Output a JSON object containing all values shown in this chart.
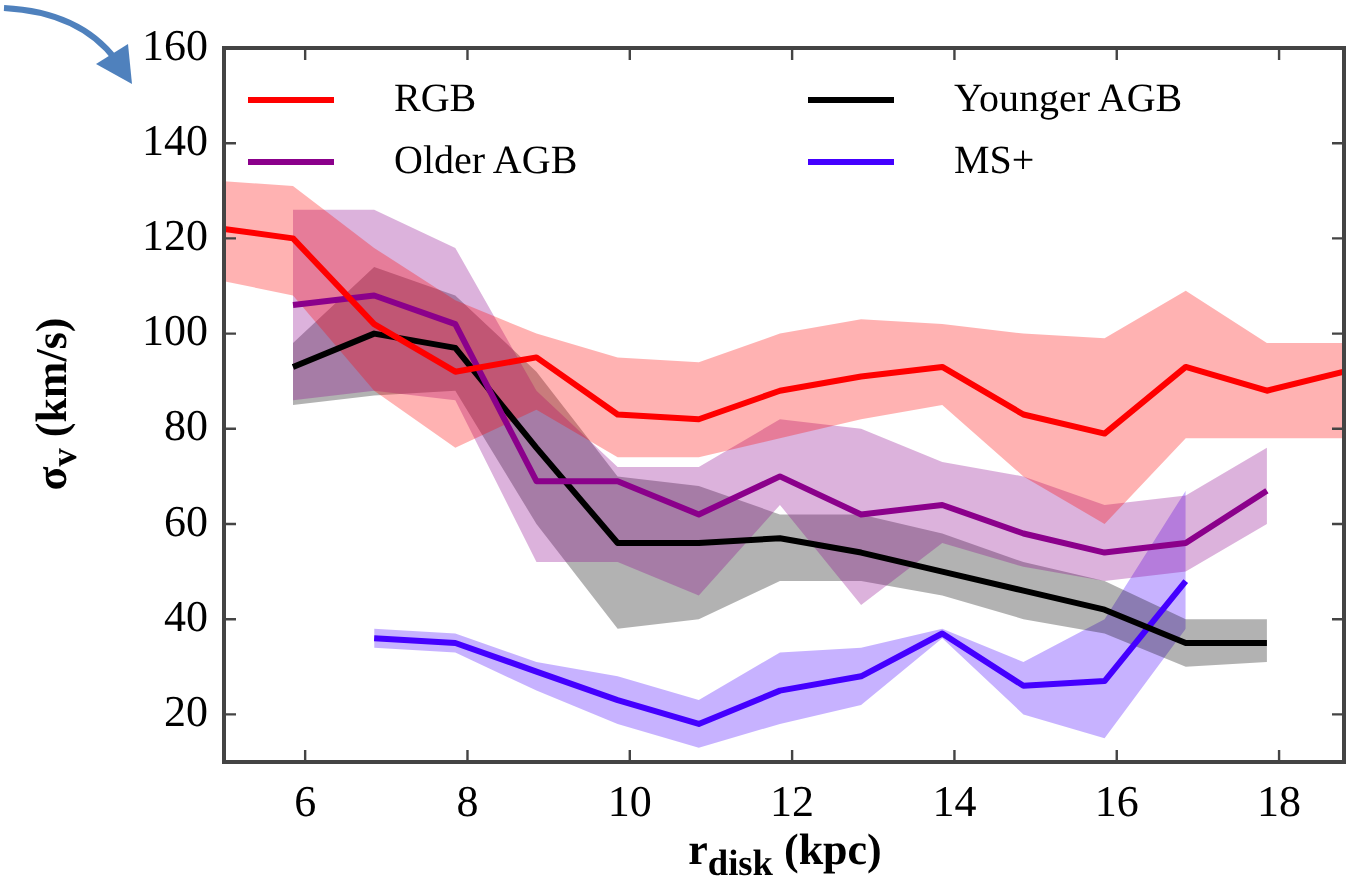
{
  "chart_data": {
    "type": "line",
    "xlabel": "r$_{disk}$ (kpc)",
    "ylabel": "σ$_{v}$ (km/s)",
    "xlim": [
      5,
      18.8
    ],
    "xticks": [
      6,
      8,
      10,
      12,
      14,
      16,
      18
    ],
    "ylim": [
      10,
      160
    ],
    "yticks": [
      20,
      40,
      60,
      80,
      100,
      120,
      140,
      160
    ],
    "grid": false,
    "legend": "top",
    "marker": "none",
    "line_style": "solid",
    "series": [
      {
        "name": "RGB",
        "color": "#ff0000",
        "x": [
          5,
          5.85,
          6.85,
          7.85,
          8.85,
          9.85,
          10.85,
          11.85,
          12.85,
          13.85,
          14.85,
          15.85,
          16.85,
          17.85,
          18.8
        ],
        "values": [
          122,
          120,
          102,
          92,
          95,
          83,
          82,
          88,
          91,
          93,
          83,
          79,
          93,
          88,
          92
        ],
        "lower": [
          111,
          108,
          88,
          76,
          84,
          74,
          74,
          78,
          82,
          85,
          70,
          60,
          78,
          78,
          78
        ],
        "upper": [
          132,
          131,
          118,
          107,
          100,
          95,
          94,
          100,
          103,
          102,
          100,
          99,
          109,
          98,
          98
        ]
      },
      {
        "name": "Older AGB",
        "color": "#8b008b",
        "x": [
          5.85,
          6.85,
          7.85,
          8.85,
          9.85,
          10.85,
          11.85,
          12.85,
          13.85,
          14.85,
          15.85,
          16.85,
          17.85
        ],
        "values": [
          106,
          108,
          102,
          69,
          69,
          62,
          70,
          62,
          64,
          58,
          54,
          56,
          67
        ],
        "lower": [
          86,
          88,
          86,
          52,
          52,
          45,
          64,
          43,
          56,
          51,
          48,
          50,
          60
        ],
        "upper": [
          126,
          126,
          118,
          88,
          72,
          72,
          82,
          80,
          73,
          70,
          64,
          66,
          76
        ]
      },
      {
        "name": "Younger AGB",
        "color": "#000000",
        "x": [
          5.85,
          6.85,
          7.85,
          8.85,
          9.85,
          10.85,
          11.85,
          12.85,
          13.85,
          14.85,
          15.85,
          16.85,
          17.85
        ],
        "values": [
          93,
          100,
          97,
          76,
          56,
          56,
          57,
          54,
          50,
          46,
          42,
          35,
          35
        ],
        "lower": [
          85,
          87,
          88,
          60,
          38,
          40,
          48,
          48,
          45,
          40,
          37,
          30,
          31
        ],
        "upper": [
          98,
          114,
          108,
          92,
          70,
          68,
          62,
          62,
          58,
          52,
          48,
          40,
          40
        ]
      },
      {
        "name": "MS+",
        "color": "#4400ff",
        "x": [
          6.85,
          7.85,
          8.85,
          9.85,
          10.85,
          11.85,
          12.85,
          13.85,
          14.85,
          15.85,
          16.85
        ],
        "values": [
          36,
          35,
          29,
          23,
          18,
          25,
          28,
          37,
          26,
          27,
          48
        ],
        "lower": [
          34,
          33,
          25,
          18,
          13,
          18,
          22,
          36,
          20,
          15,
          38
        ],
        "upper": [
          38,
          37,
          31,
          28,
          23,
          33,
          34,
          38,
          31,
          40,
          67
        ]
      }
    ]
  }
}
